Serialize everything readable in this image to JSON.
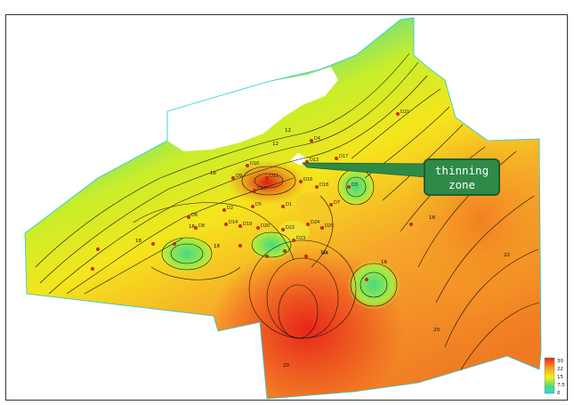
{
  "map": {
    "callout": {
      "line1": "thinning",
      "line2": "zone"
    },
    "scale": {
      "ticks": [
        "30",
        "22",
        "15",
        "7.5",
        "0"
      ],
      "colors": [
        "#e8251b",
        "#f5a623",
        "#f2f21a",
        "#4fd97a",
        "#29d6e8"
      ]
    },
    "contour_labels": [
      "16",
      "12",
      "16",
      "18",
      "12",
      "16",
      "18",
      "20",
      "22",
      "16",
      "18",
      "20",
      "24"
    ],
    "wells": [
      "D21",
      "D4",
      "D17",
      "D13",
      "D12",
      "D10",
      "D9",
      "D11",
      "D15",
      "D16",
      "D18",
      "D3",
      "D7",
      "D1",
      "D5",
      "D2",
      "D6",
      "D8",
      "D14",
      "D19",
      "D20",
      "D22",
      "D23",
      "D24",
      "D25"
    ]
  }
}
